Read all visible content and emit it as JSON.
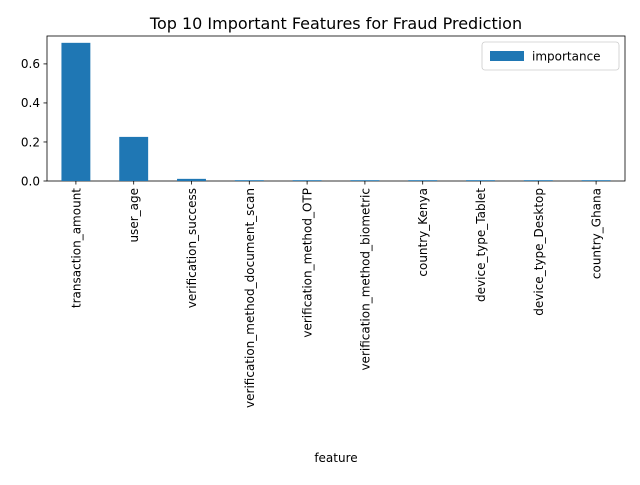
{
  "chart_data": {
    "type": "bar",
    "title": "Top 10 Important Features for Fraud Prediction",
    "xlabel": "feature",
    "ylabel": "",
    "categories": [
      "transaction_amount",
      "user_age",
      "verification_success",
      "verification_method_document_scan",
      "verification_method_OTP",
      "verification_method_biometric",
      "country_Kenya",
      "device_type_Tablet",
      "device_type_Desktop",
      "country_Ghana"
    ],
    "series": [
      {
        "name": "importance",
        "color": "#1f77b4",
        "values": [
          0.708,
          0.226,
          0.011,
          0.004,
          0.004,
          0.003,
          0.003,
          0.003,
          0.003,
          0.002
        ]
      }
    ],
    "yticks": [
      "0.0",
      "0.2",
      "0.4",
      "0.6"
    ],
    "ylim": [
      0,
      0.743
    ],
    "grid": false,
    "legend": "top-right"
  }
}
